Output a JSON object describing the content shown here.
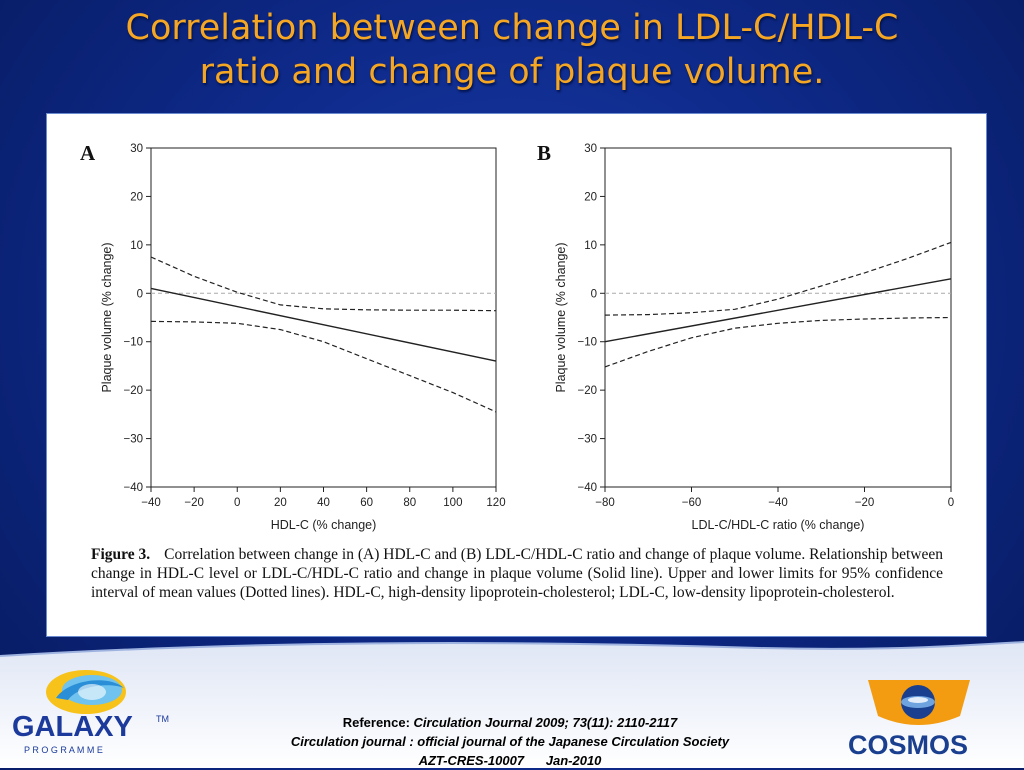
{
  "slide": {
    "title_line1": "Correlation between change in LDL-C/HDL-C",
    "title_line2": "ratio and change of plaque volume."
  },
  "figure": {
    "caption_label": "Figure 3.",
    "caption_text": "Correlation between change in (A) HDL-C and (B) LDL-C/HDL-C ratio and change of plaque volume. Relationship between change in HDL-C level or LDL-C/HDL-C ratio and change in plaque volume (Solid line). Upper and lower limits for 95% confidence interval of mean values (Dotted lines). HDL-C, high-density lipoprotein-cholesterol; LDL-C, low-density lipoprotein-cholesterol."
  },
  "chart_data": [
    {
      "type": "line",
      "panel_label": "A",
      "xlabel": "HDL-C (% change)",
      "ylabel": "Plaque volume (% change)",
      "xlim": [
        -40,
        120
      ],
      "ylim": [
        -40,
        30
      ],
      "xticks": [
        -40,
        -20,
        0,
        20,
        40,
        60,
        80,
        100,
        120
      ],
      "yticks": [
        30,
        20,
        10,
        0,
        -10,
        -20,
        -30,
        -40
      ],
      "xtick_labels": [
        "−40",
        "−20",
        "0",
        "20",
        "40",
        "60",
        "80",
        "100",
        "120"
      ],
      "ytick_labels": [
        "30",
        "20",
        "10",
        "0",
        "−10",
        "−20",
        "−30",
        "−40"
      ],
      "reference_line_y": 0,
      "series": [
        {
          "style": "solid",
          "x": [
            -40,
            120
          ],
          "y": [
            1,
            -14
          ]
        },
        {
          "style": "dashed",
          "x": [
            -40,
            -20,
            0,
            20,
            40,
            60,
            80,
            100,
            120
          ],
          "y": [
            7.5,
            3.5,
            0.2,
            -2.4,
            -3.2,
            -3.4,
            -3.5,
            -3.5,
            -3.6
          ]
        },
        {
          "style": "dashed",
          "x": [
            -40,
            -20,
            0,
            20,
            40,
            60,
            80,
            100,
            120
          ],
          "y": [
            -5.8,
            -5.9,
            -6.2,
            -7.5,
            -10,
            -13.5,
            -17,
            -20.5,
            -24.5
          ]
        }
      ]
    },
    {
      "type": "line",
      "panel_label": "B",
      "xlabel": "LDL-C/HDL-C ratio (% change)",
      "ylabel": "Plaque volume (% change)",
      "xlim": [
        -80,
        0
      ],
      "ylim": [
        -40,
        30
      ],
      "xticks": [
        -80,
        -60,
        -40,
        -20,
        0
      ],
      "yticks": [
        30,
        20,
        10,
        0,
        -10,
        -20,
        -30,
        -40
      ],
      "xtick_labels": [
        "−80",
        "−60",
        "−40",
        "−20",
        "0"
      ],
      "ytick_labels": [
        "30",
        "20",
        "10",
        "0",
        "−10",
        "−20",
        "−30",
        "−40"
      ],
      "reference_line_y": 0,
      "series": [
        {
          "style": "solid",
          "x": [
            -80,
            0
          ],
          "y": [
            -10,
            3
          ]
        },
        {
          "style": "dashed",
          "x": [
            -80,
            -70,
            -60,
            -50,
            -40,
            -30,
            -20,
            -10,
            0
          ],
          "y": [
            -4.5,
            -4.4,
            -4,
            -3.3,
            -1.2,
            1.5,
            4.2,
            7.2,
            10.5
          ]
        },
        {
          "style": "dashed",
          "x": [
            -80,
            -70,
            -60,
            -50,
            -40,
            -30,
            -20,
            -10,
            0
          ],
          "y": [
            -15.2,
            -12,
            -9.2,
            -7.2,
            -6.2,
            -5.6,
            -5.3,
            -5.1,
            -5
          ]
        }
      ]
    }
  ],
  "footer": {
    "ref_label": "Reference: ",
    "ref_citation": "Circulation Journal 2009; 73(11): 2110-2117",
    "journal_line": "Circulation journal : official journal of the Japanese Circulation Society",
    "code": "AZT-CRES-10007",
    "date": "Jan-2010"
  },
  "logos": {
    "left_name": "GALAXY",
    "left_tm": "TM",
    "left_sub": "P R O G R A M M E",
    "right_name": "COSMOS"
  },
  "colors": {
    "title": "#f5a623",
    "background": "#0e2a8a",
    "cosmos_orange": "#f39c12",
    "cosmos_blue": "#1a3f8f"
  }
}
